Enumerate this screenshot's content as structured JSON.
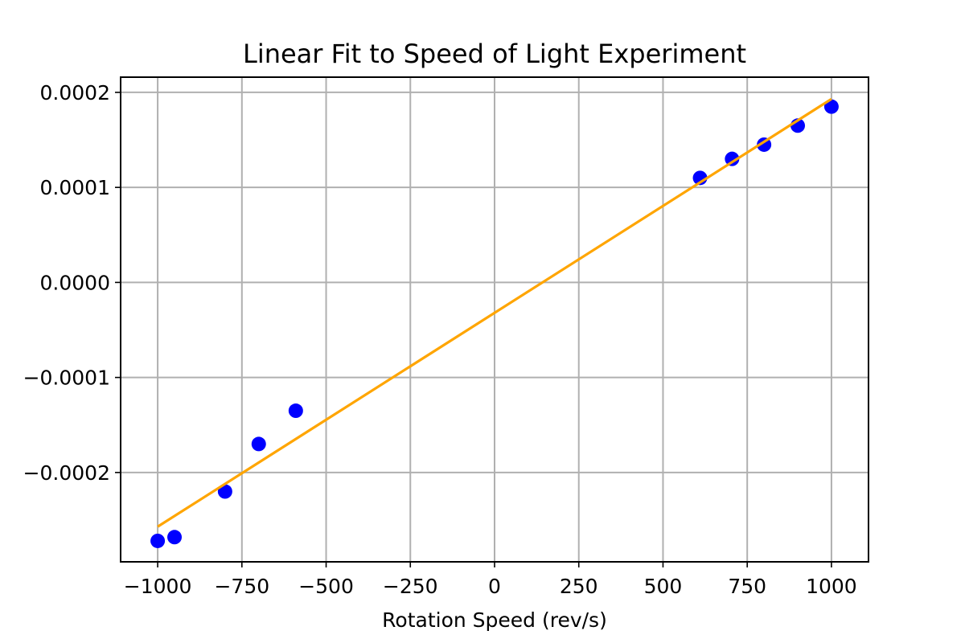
{
  "chart_data": {
    "type": "scatter",
    "title": "Linear Fit to Speed of Light Experiment",
    "xlabel": "Rotation Speed (rev/s)",
    "ylabel": "",
    "xlim": [
      -1110,
      1110
    ],
    "ylim": [
      -0.000294,
      0.000216
    ],
    "grid": true,
    "x_ticks": [
      -1000,
      -750,
      -500,
      -250,
      0,
      250,
      500,
      750,
      1000
    ],
    "x_tick_labels": [
      "−1000",
      "−750",
      "−500",
      "−250",
      "0",
      "250",
      "500",
      "750",
      "1000"
    ],
    "y_ticks": [
      0.0002,
      0.0001,
      0.0,
      -0.0001,
      -0.0002
    ],
    "y_tick_labels": [
      "0.0002",
      "0.0001",
      "0.0000",
      "−0.0001",
      "−0.0002"
    ],
    "series": [
      {
        "type": "scatter",
        "color": "#0000ff",
        "x": [
          -1000,
          -950,
          -800,
          -700,
          -590,
          610,
          705,
          800,
          900,
          1000
        ],
        "y": [
          -0.000272,
          -0.000268,
          -0.00022,
          -0.00017,
          -0.000135,
          0.00011,
          0.00013,
          0.000145,
          0.000165,
          0.000185
        ]
      },
      {
        "type": "line",
        "color": "#ffa500",
        "x": [
          -1000,
          1000
        ],
        "y": [
          -0.000257,
          0.000193
        ]
      }
    ]
  }
}
